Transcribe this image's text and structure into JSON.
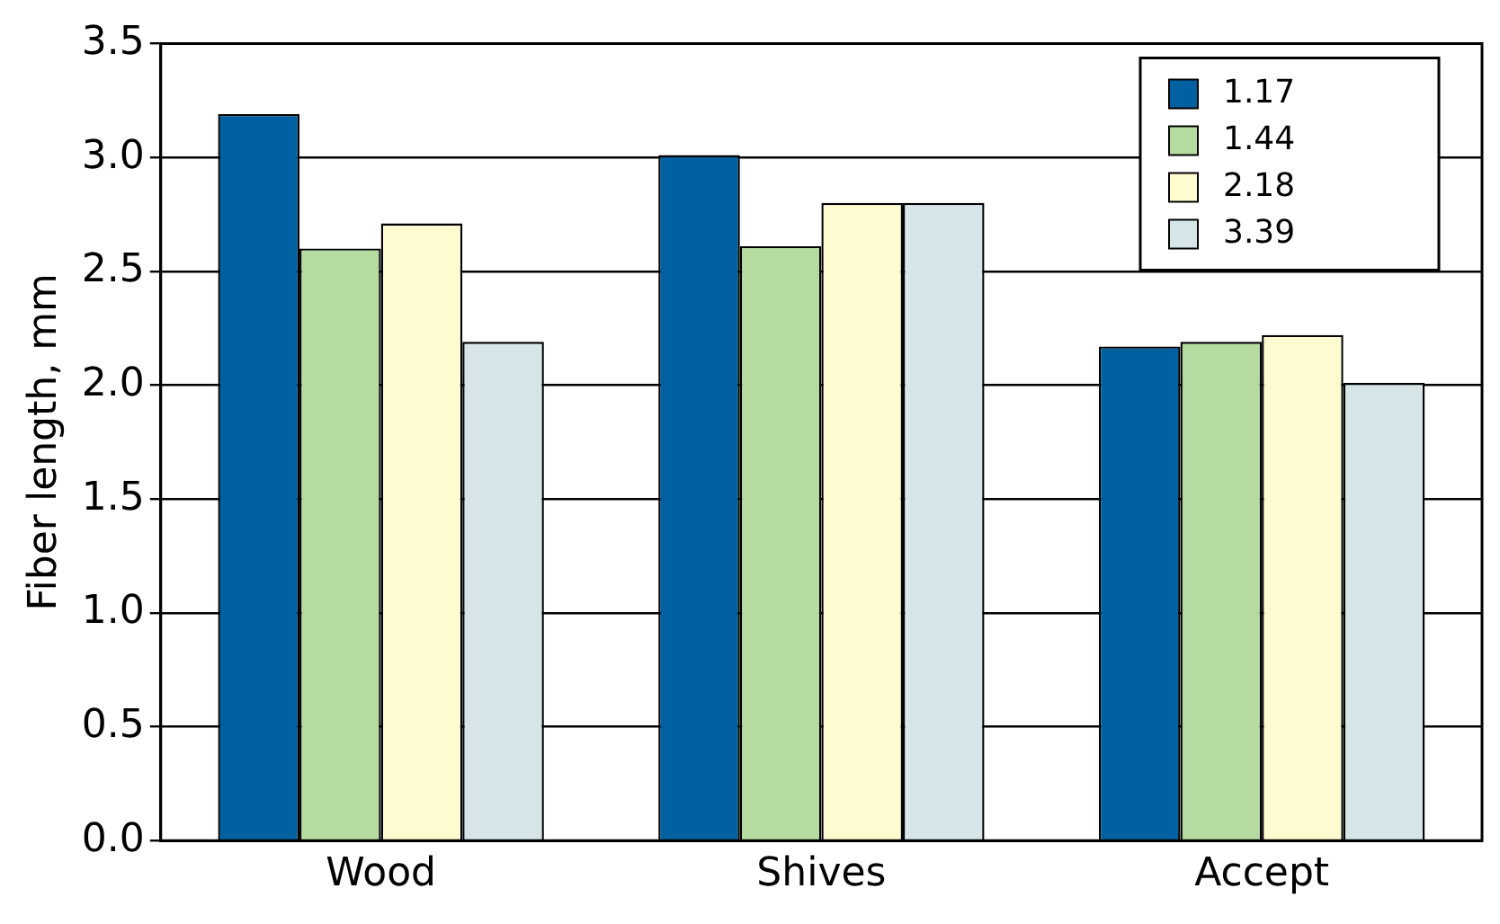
{
  "chart_data": {
    "type": "bar",
    "ylabel": "Fiber length, mm",
    "categories": [
      "Wood",
      "Shives",
      "Accept"
    ],
    "series": [
      {
        "name": "1.17",
        "color": "#0060a0",
        "values": [
          3.19,
          3.01,
          2.17
        ]
      },
      {
        "name": "1.44",
        "color": "#b5dba0",
        "values": [
          2.6,
          2.61,
          2.19
        ]
      },
      {
        "name": "2.18",
        "color": "#fffbd0",
        "values": [
          2.71,
          2.8,
          2.22
        ]
      },
      {
        "name": "3.39",
        "color": "#d5e5e8",
        "values": [
          2.19,
          2.8,
          2.01
        ]
      }
    ],
    "ylim": [
      0,
      3.5
    ],
    "yticks": [
      {
        "value": 0,
        "label": "0.0"
      },
      {
        "value": 0.5,
        "label": "0.5"
      },
      {
        "value": 1,
        "label": "1.0"
      },
      {
        "value": 1.5,
        "label": "1.5"
      },
      {
        "value": 2,
        "label": "2.0"
      },
      {
        "value": 2.5,
        "label": "2.5"
      },
      {
        "value": 3,
        "label": "3.0"
      },
      {
        "value": 3.5,
        "label": "3.5"
      }
    ],
    "grid": "y",
    "legend": "top right"
  }
}
